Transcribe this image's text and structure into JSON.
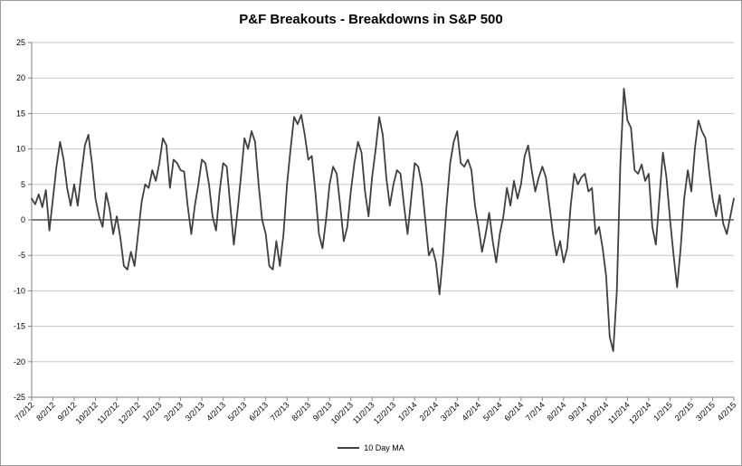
{
  "chart_data": {
    "type": "line",
    "title": "P&F Breakouts - Breakdowns in S&P 500",
    "xlabel": "",
    "ylabel": "",
    "ylim": [
      -25,
      25
    ],
    "y_tick_step": 5,
    "grid": true,
    "zero_line_color": "#000000",
    "gridline_color": "#c6c6c6",
    "axis_color": "#808080",
    "legend": {
      "position": "bottom"
    },
    "points_per_tick": 6,
    "x_tick_labels": [
      "7/2/12",
      "8/2/12",
      "9/2/12",
      "10/2/12",
      "11/2/12",
      "12/2/12",
      "1/2/13",
      "2/2/13",
      "3/2/13",
      "4/2/13",
      "5/2/13",
      "6/2/13",
      "7/2/13",
      "8/2/13",
      "9/2/13",
      "10/2/13",
      "11/2/13",
      "12/2/13",
      "1/2/14",
      "2/2/14",
      "3/2/14",
      "4/2/14",
      "5/2/14",
      "6/2/14",
      "7/2/14",
      "8/2/14",
      "9/2/14",
      "10/2/14",
      "11/2/14",
      "12/2/14",
      "1/2/15",
      "2/2/15",
      "3/2/15",
      "4/2/15"
    ],
    "series": [
      {
        "name": "10 Day MA",
        "color": "#3f3f3f",
        "values": [
          3,
          2.2,
          3.6,
          1.8,
          4.2,
          -1.5,
          3,
          7.5,
          11,
          8.5,
          4.5,
          2,
          5,
          2,
          6.5,
          10.5,
          12,
          8,
          3,
          0.5,
          -1,
          3.8,
          1.5,
          -2,
          0.5,
          -2.5,
          -6.5,
          -7,
          -4.5,
          -6.5,
          -2,
          2.5,
          5,
          4.5,
          7,
          5.5,
          8,
          11.5,
          10.5,
          4.5,
          8.5,
          8,
          7,
          6.8,
          2,
          -2,
          2,
          5,
          8.5,
          8,
          5,
          0.5,
          -1.5,
          4,
          8,
          7.5,
          2,
          -3.5,
          1,
          6,
          11.5,
          10,
          12.5,
          11,
          5,
          0,
          -2,
          -6.5,
          -7,
          -3,
          -6.5,
          -2,
          5,
          10,
          14.5,
          13.5,
          14.8,
          12,
          8.5,
          9,
          4,
          -2,
          -4,
          0,
          5,
          7.5,
          6.5,
          2,
          -3,
          -1,
          4,
          8,
          11,
          9.5,
          4,
          0.5,
          6,
          10,
          14.5,
          12,
          6,
          2,
          5,
          7,
          6.5,
          2,
          -2,
          3,
          8,
          7.5,
          5,
          0,
          -5,
          -4,
          -6,
          -10.5,
          -5,
          2,
          8,
          11,
          12.5,
          8,
          7.5,
          8.5,
          7,
          2,
          -1,
          -4.5,
          -2,
          1,
          -3,
          -6,
          -2,
          0.5,
          4.5,
          2,
          5.5,
          3,
          5,
          9,
          10.5,
          7,
          4,
          6,
          7.5,
          6,
          2,
          -2,
          -5,
          -3,
          -6,
          -4,
          2,
          6.5,
          5,
          6,
          6.5,
          4,
          4.5,
          -2,
          -1,
          -4,
          -8,
          -16.5,
          -18.5,
          -10,
          8,
          18.5,
          14,
          13,
          7,
          6.5,
          7.8,
          5.5,
          6.5,
          -1,
          -3.5,
          3,
          9.5,
          6,
          0,
          -5,
          -9.5,
          -4,
          3,
          7,
          4,
          10,
          14,
          12.5,
          11.5,
          7,
          3,
          0.5,
          3.5,
          -0.5,
          -2,
          0.5,
          3
        ]
      }
    ]
  }
}
